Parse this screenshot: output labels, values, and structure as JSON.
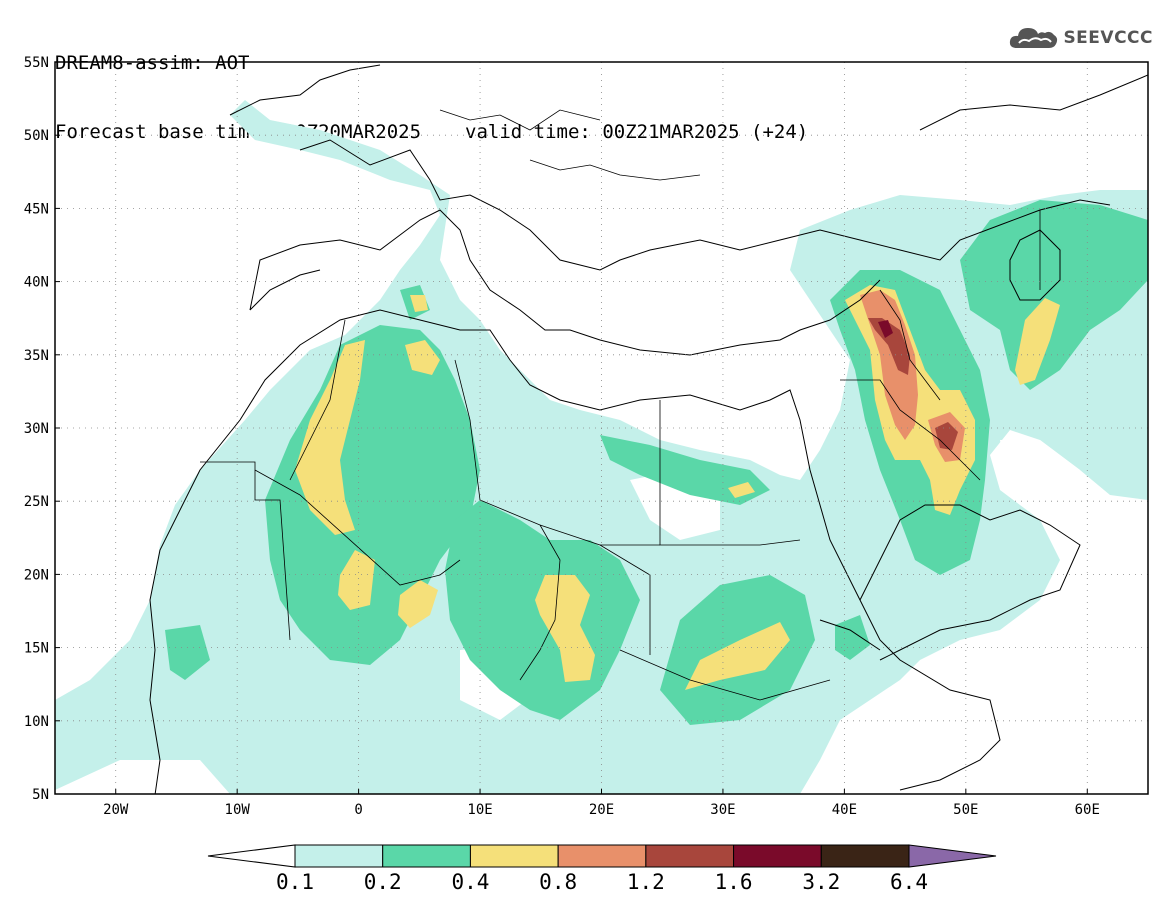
{
  "header": {
    "title": "DREAM8-assim: AOT",
    "base_time": "Forecast base time: 00Z20MAR2025",
    "valid_time": "valid time: 00Z21MAR2025 (+24)"
  },
  "logo": {
    "text": "SEEVCCC",
    "icon": "cloud-icon"
  },
  "map": {
    "lat_labels": [
      "55N",
      "50N",
      "45N",
      "40N",
      "35N",
      "30N",
      "25N",
      "20N",
      "15N",
      "10N",
      "5N"
    ],
    "lon_labels": [
      "20W",
      "10W",
      "0",
      "10E",
      "20E",
      "30E",
      "40E",
      "50E",
      "60E"
    ],
    "gridlines": "dotted",
    "extent": {
      "lon_min": -25,
      "lon_max": 65,
      "lat_min": 5,
      "lat_max": 55
    }
  },
  "legend": {
    "labels": [
      "0.1",
      "0.2",
      "0.4",
      "0.8",
      "1.2",
      "1.6",
      "3.2",
      "6.4"
    ],
    "colors": [
      "#ffffff",
      "#c4f0ea",
      "#5ad7a8",
      "#f5e07a",
      "#e8906a",
      "#a8463c",
      "#7a0a2a",
      "#3a2416",
      "#8a68a8"
    ]
  },
  "colors": {
    "aot_0_1_0_2": "#c4f0ea",
    "aot_0_2_0_4": "#5ad7a8",
    "aot_0_4_0_8": "#f5e07a",
    "aot_0_8_1_2": "#e8906a",
    "aot_1_2_1_6": "#a8463c",
    "aot_1_6_3_2": "#7a0a2a"
  }
}
